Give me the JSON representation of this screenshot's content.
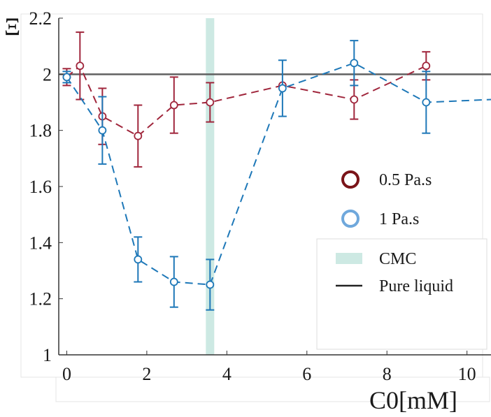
{
  "chart_data": {
    "type": "line",
    "title": "",
    "xlabel": "C0[mM]",
    "ylabel": "Ξ",
    "xlim": [
      -0.2,
      10.6
    ],
    "ylim": [
      1.0,
      2.2
    ],
    "x_ticks": [
      "0",
      "2",
      "4",
      "6",
      "8",
      "10"
    ],
    "y_ticks": [
      "1",
      "1.2",
      "1.4",
      "1.6",
      "1.8",
      "2",
      "2.2"
    ],
    "grid": false,
    "legend_position": "right",
    "series": [
      {
        "name": "0.5 Pa.s",
        "color": "#a0263c",
        "legend_color": "#7a1418",
        "line_style": "dashed",
        "marker": "circle",
        "x": [
          0,
          0.33,
          0.89,
          1.78,
          2.68,
          3.58,
          5.39,
          7.18,
          8.98
        ],
        "y": [
          1.99,
          2.03,
          1.85,
          1.78,
          1.89,
          1.9,
          1.96,
          1.91,
          2.03
        ],
        "err": [
          0.03,
          0.12,
          0.1,
          0.11,
          0.1,
          0.07,
          0.0,
          0.07,
          0.05
        ]
      },
      {
        "name": "1 Pa.s",
        "color": "#1e78b8",
        "legend_color": "#6fa8dc",
        "line_style": "dashed",
        "marker": "circle",
        "x": [
          0,
          0.89,
          1.78,
          2.68,
          3.58,
          5.39,
          7.18,
          8.98,
          10.6
        ],
        "y": [
          1.99,
          1.8,
          1.34,
          1.26,
          1.25,
          1.95,
          2.04,
          1.9,
          1.91
        ],
        "err": [
          0.02,
          0.12,
          0.08,
          0.09,
          0.09,
          0.1,
          0.08,
          0.11,
          null
        ]
      }
    ],
    "reference_lines": [
      {
        "name": "Pure liquid",
        "orientation": "horizontal",
        "value": 2.0,
        "color": "#606060"
      },
      {
        "name": "CMC",
        "orientation": "vertical",
        "value": 3.58,
        "color": "#cde9e3"
      }
    ],
    "legend": {
      "items": [
        {
          "label": "0.5 Pa.s",
          "symbol": "circle"
        },
        {
          "label": "1 Pa.s",
          "symbol": "circle"
        },
        {
          "label": "CMC",
          "symbol": "band"
        },
        {
          "label": "Pure liquid",
          "symbol": "line"
        }
      ]
    }
  }
}
